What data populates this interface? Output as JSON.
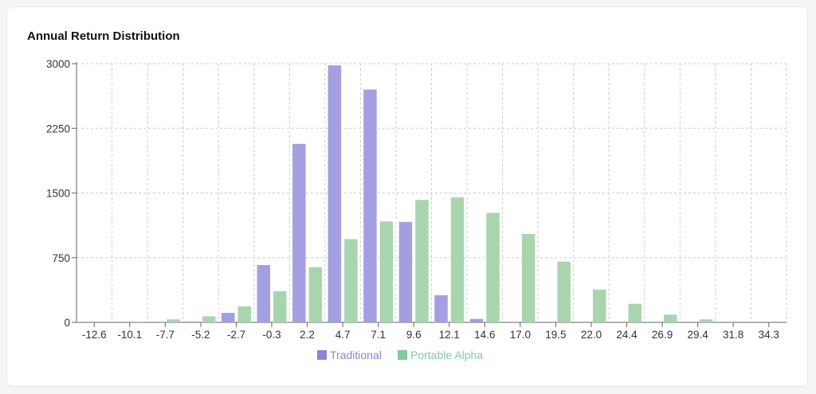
{
  "card": {
    "title": "Annual Return Distribution"
  },
  "colors": {
    "traditional": "#a49fe0",
    "portable_alpha": "#a8d5ae",
    "legend_traditional": "#8884d8",
    "legend_portable_alpha": "#82ca9d",
    "grid": "#cccccc",
    "axis": "#666666"
  },
  "chart_data": {
    "type": "bar",
    "title": "Annual Return Distribution",
    "xlabel": "",
    "ylabel": "",
    "categories": [
      "-12.6",
      "-10.1",
      "-7.7",
      "-5.2",
      "-2.7",
      "-0.3",
      "2.2",
      "4.7",
      "7.1",
      "9.6",
      "12.1",
      "14.6",
      "17.0",
      "19.5",
      "22.0",
      "24.4",
      "26.9",
      "29.4",
      "31.8",
      "34.3"
    ],
    "series": [
      {
        "name": "Traditional",
        "values": [
          0,
          0,
          0,
          10,
          110,
          665,
          2070,
          2980,
          2700,
          1165,
          315,
          40,
          0,
          0,
          0,
          0,
          0,
          0,
          0,
          0
        ]
      },
      {
        "name": "Portable Alpha",
        "values": [
          0,
          10,
          35,
          70,
          185,
          360,
          640,
          965,
          1170,
          1420,
          1450,
          1270,
          1025,
          705,
          380,
          215,
          90,
          35,
          0,
          0
        ]
      }
    ],
    "ylim": [
      0,
      3000
    ],
    "yticks": [
      0,
      750,
      1500,
      2250,
      3000
    ],
    "grid": true,
    "legend_position": "bottom"
  }
}
